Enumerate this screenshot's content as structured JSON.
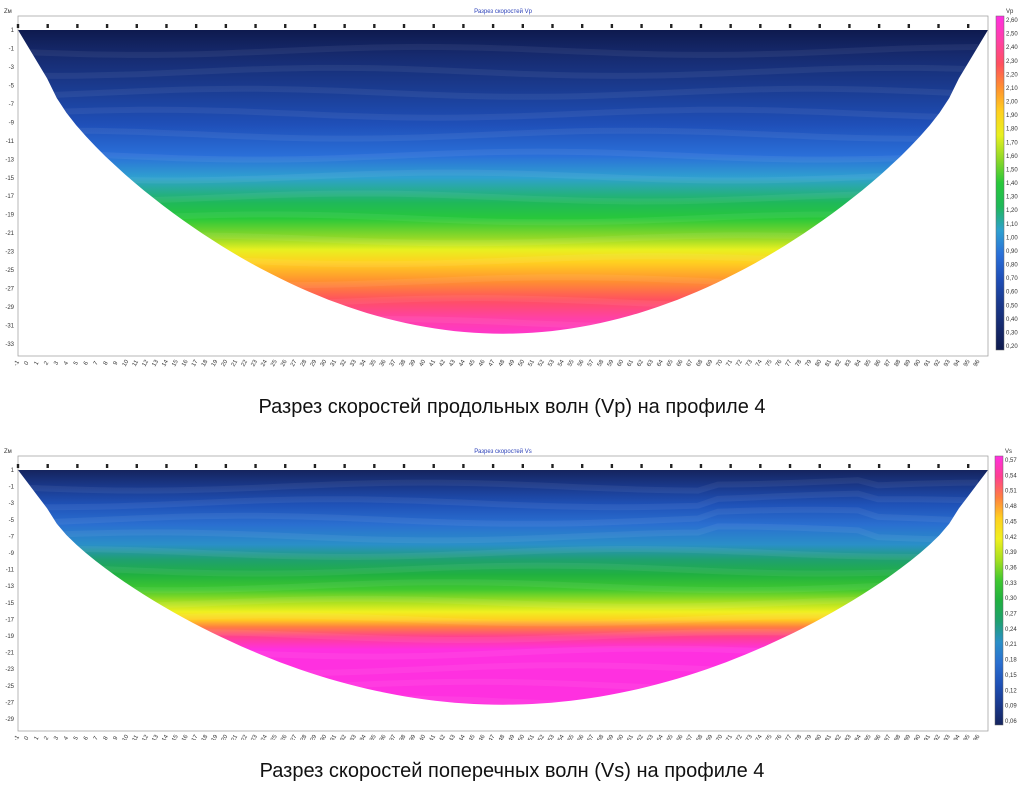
{
  "captions": {
    "vp": "Разрез скоростей продольных волн (Vp) на профиле 4",
    "vs": "Разрез скоростей поперечных волн (Vs) на профиле 4"
  },
  "chart_data": [
    {
      "type": "heatmap",
      "title": "Разрез скоростей Vp",
      "y_unit": "Zм",
      "legend_unit": "Vp",
      "x_range": [
        -1,
        97
      ],
      "x_ticks": [
        -1,
        0,
        1,
        2,
        3,
        4,
        5,
        6,
        7,
        8,
        9,
        10,
        11,
        12,
        13,
        14,
        15,
        16,
        17,
        18,
        19,
        20,
        21,
        22,
        23,
        24,
        25,
        26,
        27,
        28,
        29,
        30,
        31,
        32,
        33,
        34,
        35,
        36,
        37,
        38,
        39,
        40,
        41,
        42,
        43,
        44,
        45,
        46,
        47,
        48,
        49,
        50,
        51,
        52,
        53,
        54,
        55,
        56,
        57,
        58,
        59,
        60,
        61,
        62,
        63,
        64,
        65,
        66,
        67,
        68,
        69,
        70,
        71,
        72,
        73,
        74,
        75,
        76,
        77,
        78,
        79,
        80,
        81,
        82,
        83,
        84,
        85,
        86,
        87,
        88,
        89,
        90,
        91,
        92,
        93,
        94,
        95,
        96
      ],
      "y_range": [
        1,
        -33
      ],
      "y_ticks": [
        1,
        -1,
        -3,
        -5,
        -7,
        -9,
        -11,
        -13,
        -15,
        -17,
        -19,
        -21,
        -23,
        -25,
        -27,
        -29,
        -31,
        -33
      ],
      "colorbar_ticks": [
        "2,60",
        "2,50",
        "2,40",
        "2,30",
        "2,20",
        "2,10",
        "2,00",
        "1,90",
        "1,80",
        "1,70",
        "1,60",
        "1,50",
        "1,40",
        "1,30",
        "1,20",
        "1,10",
        "1,00",
        "0,90",
        "0,80",
        "0,70",
        "0,60",
        "0,50",
        "0,40",
        "0,30",
        "0,20"
      ],
      "colors": [
        "#0e1a4e",
        "#162a6e",
        "#1a3a8e",
        "#1f4fb8",
        "#2a6fd8",
        "#2fa0d0",
        "#1fb85a",
        "#28c83a",
        "#8fd828",
        "#e8f020",
        "#ffd020",
        "#ff9030",
        "#ff5060",
        "#ff40a8",
        "#ff30e0"
      ]
    },
    {
      "type": "heatmap",
      "title": "Разрез скоростей Vs",
      "y_unit": "Zм",
      "legend_unit": "Vs",
      "x_range": [
        -1,
        97
      ],
      "x_ticks": [
        -1,
        0,
        1,
        2,
        3,
        4,
        5,
        6,
        7,
        8,
        9,
        10,
        11,
        12,
        13,
        14,
        15,
        16,
        17,
        18,
        19,
        20,
        21,
        22,
        23,
        24,
        25,
        26,
        27,
        28,
        29,
        30,
        31,
        32,
        33,
        34,
        35,
        36,
        37,
        38,
        39,
        40,
        41,
        42,
        43,
        44,
        45,
        46,
        47,
        48,
        49,
        50,
        51,
        52,
        53,
        54,
        55,
        56,
        57,
        58,
        59,
        60,
        61,
        62,
        63,
        64,
        65,
        66,
        67,
        68,
        69,
        70,
        71,
        72,
        73,
        74,
        75,
        76,
        77,
        78,
        79,
        80,
        81,
        82,
        83,
        84,
        85,
        86,
        87,
        88,
        89,
        90,
        91,
        92,
        93,
        94,
        95,
        96
      ],
      "y_range": [
        1,
        -29
      ],
      "y_ticks": [
        1,
        -1,
        -3,
        -5,
        -7,
        -9,
        -11,
        -13,
        -15,
        -17,
        -19,
        -21,
        -23,
        -25,
        -27,
        -29
      ],
      "colorbar_ticks": [
        "0,57",
        "0,54",
        "0,51",
        "0,48",
        "0,45",
        "0,42",
        "0,39",
        "0,36",
        "0,33",
        "0,30",
        "0,27",
        "0,24",
        "0,21",
        "0,18",
        "0,15",
        "0,12",
        "0,09",
        "0,06"
      ],
      "colors": [
        "#15245e",
        "#1a3a8e",
        "#1f52b8",
        "#2a6fd0",
        "#2a8fc8",
        "#1fa070",
        "#20b040",
        "#40c830",
        "#a8e020",
        "#f0f020",
        "#ffd020",
        "#ff8040",
        "#ff4090",
        "#ff30e0"
      ]
    }
  ]
}
